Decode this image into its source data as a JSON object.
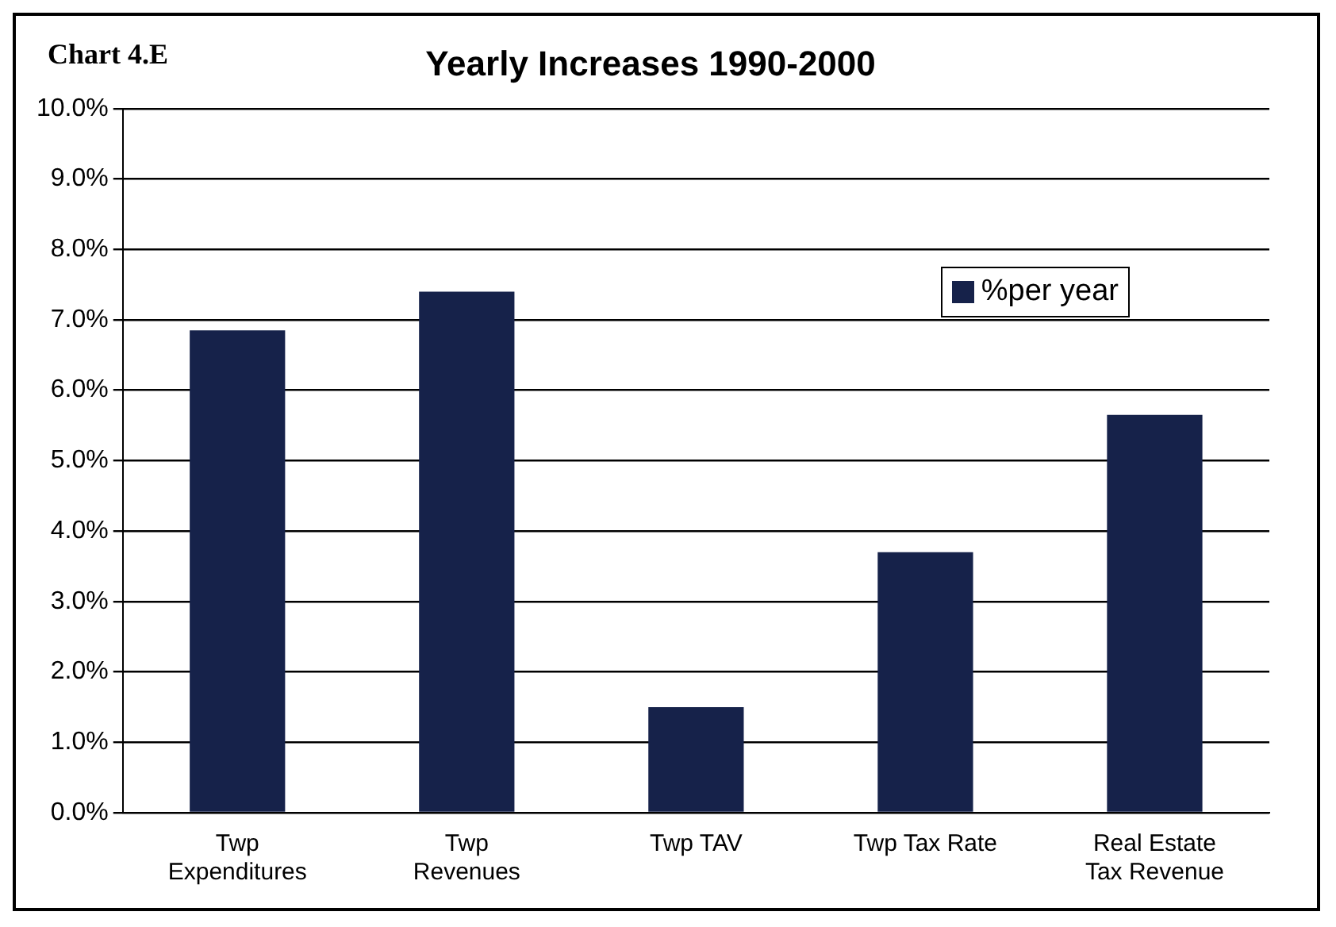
{
  "chart_data": {
    "type": "bar",
    "title": "Yearly Increases 1990-2000",
    "annotations": [
      "Chart 4.E"
    ],
    "categories": [
      "Twp Expenditures",
      "Twp Revenues",
      "Twp TAV",
      "Twp Tax Rate",
      "Real Estate Tax Revenue"
    ],
    "series": [
      {
        "name": "%per year",
        "color": "#16224a",
        "values": [
          6.85,
          7.4,
          1.5,
          3.7,
          5.65
        ]
      }
    ],
    "ylim": [
      0,
      10
    ],
    "yticks": [
      {
        "value": 0,
        "label": "0.0%"
      },
      {
        "value": 1,
        "label": "1.0%"
      },
      {
        "value": 2,
        "label": "2.0%"
      },
      {
        "value": 3,
        "label": "3.0%"
      },
      {
        "value": 4,
        "label": "4.0%"
      },
      {
        "value": 5,
        "label": "5.0%"
      },
      {
        "value": 6,
        "label": "6.0%"
      },
      {
        "value": 7,
        "label": "7.0%"
      },
      {
        "value": 8,
        "label": "8.0%"
      },
      {
        "value": 9,
        "label": "9.0%"
      },
      {
        "value": 10,
        "label": "10.0%"
      }
    ],
    "grid": "y",
    "legend": "top right"
  }
}
